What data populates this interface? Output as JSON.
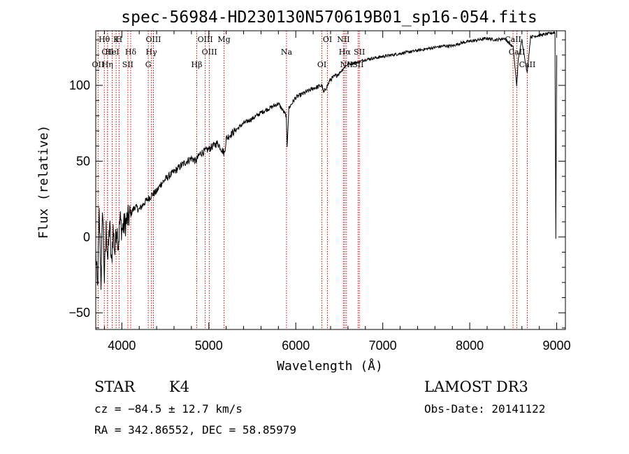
{
  "chart_data": {
    "type": "line",
    "title": "spec-56984-HD230130N570619B01_sp16-054.fits",
    "xlabel": "Wavelength (Å)",
    "ylabel": "Flux (relative)",
    "xlim": [
      3700,
      9100
    ],
    "ylim": [
      -61,
      136
    ],
    "x_ticks": [
      4000,
      5000,
      6000,
      7000,
      8000,
      9000
    ],
    "x_tick_labels": [
      "4000",
      "5000",
      "6000",
      "7000",
      "8000",
      "9000"
    ],
    "y_ticks": [
      -50,
      0,
      50,
      100
    ],
    "y_tick_labels": [
      "−50",
      "0",
      "50",
      "100"
    ],
    "series": [
      {
        "name": "flux",
        "x": [
          3700,
          3720,
          3740,
          3760,
          3780,
          3800,
          3820,
          3840,
          3860,
          3880,
          3900,
          3920,
          3940,
          3960,
          3980,
          4000,
          4050,
          4100,
          4150,
          4200,
          4250,
          4300,
          4350,
          4400,
          4450,
          4500,
          4600,
          4700,
          4800,
          4850,
          4900,
          5000,
          5100,
          5180,
          5200,
          5300,
          5400,
          5500,
          5600,
          5700,
          5800,
          5890,
          5900,
          5920,
          6000,
          6100,
          6200,
          6300,
          6320,
          6400,
          6500,
          6560,
          6600,
          6700,
          6800,
          6900,
          7000,
          7100,
          7200,
          7300,
          7400,
          7500,
          7600,
          7700,
          7800,
          7900,
          8000,
          8100,
          8200,
          8300,
          8400,
          8500,
          8540,
          8560,
          8600,
          8660,
          8700,
          8800,
          8900,
          8980,
          8990,
          9000
        ],
        "y": [
          -10,
          -35,
          15,
          -30,
          20,
          -28,
          5,
          -15,
          10,
          -20,
          5,
          -10,
          8,
          -5,
          12,
          5,
          10,
          15,
          20,
          18,
          22,
          25,
          28,
          30,
          35,
          38,
          43,
          48,
          52,
          50,
          55,
          58,
          62,
          55,
          65,
          70,
          75,
          78,
          82,
          85,
          88,
          80,
          60,
          85,
          92,
          95,
          98,
          100,
          95,
          104,
          108,
          112,
          114,
          115,
          117,
          118,
          119,
          120,
          121,
          122,
          123,
          124,
          125,
          126,
          126,
          128,
          129,
          130,
          131,
          130,
          131,
          125,
          100,
          118,
          130,
          108,
          132,
          133,
          134,
          135,
          -1,
          120
        ]
      }
    ],
    "lines": [
      {
        "label": "Hθ",
        "x": 3798
      },
      {
        "label": "CII",
        "x": 3836
      },
      {
        "label": "OII",
        "x": 3727
      },
      {
        "label": "K",
        "x": 3934
      },
      {
        "label": "HeI",
        "x": 3889
      },
      {
        "label": "Hη",
        "x": 3835
      },
      {
        "label": "H",
        "x": 3968
      },
      {
        "label": "Hδ",
        "x": 4102
      },
      {
        "label": "SII",
        "x": 4069
      },
      {
        "label": "OIII",
        "x": 4363
      },
      {
        "label": "Hγ",
        "x": 4340
      },
      {
        "label": "G",
        "x": 4304
      },
      {
        "label": "OIII",
        "x": 4959
      },
      {
        "label": "OIII",
        "x": 5007
      },
      {
        "label": "Hβ",
        "x": 4861
      },
      {
        "label": "Mg",
        "x": 5175
      },
      {
        "label": "Na",
        "x": 5893
      },
      {
        "label": "OI",
        "x": 6300
      },
      {
        "label": "OI",
        "x": 6364
      },
      {
        "label": "Hα",
        "x": 6563
      },
      {
        "label": "SII",
        "x": 6716
      },
      {
        "label": "NII",
        "x": 6548
      },
      {
        "label": "SII",
        "x": 6731
      },
      {
        "label": "NII",
        "x": 6583
      },
      {
        "label": "CaII",
        "x": 8498
      },
      {
        "label": "CaII",
        "x": 8542
      },
      {
        "label": "CaII",
        "x": 8662
      }
    ]
  },
  "info": {
    "object_class": "STAR",
    "subclass": "K4",
    "survey": "LAMOST DR3",
    "redshift": "cz = −84.5 ± 12.7 km/s",
    "obs_date": "Obs-Date: 20141122",
    "coords": "RA = 342.86552, DEC =  58.85979"
  },
  "colors": {
    "axes": "#000000",
    "spectrum": "#000000",
    "line_marker": "#cc0000",
    "background": "#ffffff"
  }
}
